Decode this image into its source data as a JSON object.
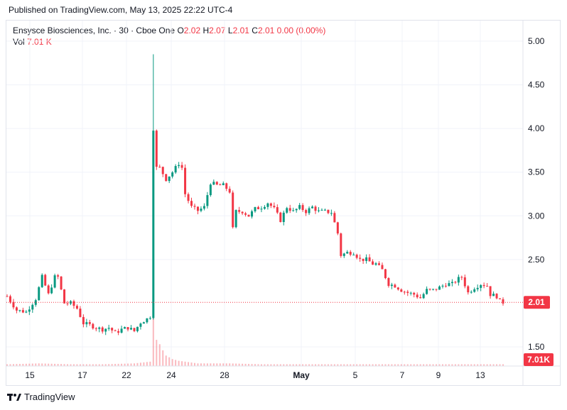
{
  "header": {
    "published": "Published on TradingView.com, May 13, 2025 22:22 UTC-4"
  },
  "legend": {
    "symbol": "Ensysce Biosciences, Inc. · 30 · Cboe One",
    "o_label": "O",
    "o": "2.02",
    "h_label": "H",
    "h": "2.07",
    "l_label": "L",
    "l": "2.01",
    "c_label": "C",
    "c": "2.01",
    "change": "0.00 (0.00%)",
    "vol_label": "Vol",
    "vol": "7.01 K"
  },
  "footer": {
    "brand": "TradingView"
  },
  "colors": {
    "up": "#089981",
    "down": "#f23645",
    "grid": "#f0f3fa",
    "text": "#131722"
  },
  "chart_data": {
    "type": "candlestick",
    "interval": "30",
    "y_ticks": [
      "5.00",
      "4.50",
      "4.00",
      "3.50",
      "3.00",
      "2.50",
      "1.50"
    ],
    "ylim": [
      1.3,
      5.2
    ],
    "x_ticks": [
      "15",
      "17",
      "22",
      "24",
      "28",
      "May",
      "5",
      "7",
      "9",
      "13"
    ],
    "last_price": "2.01",
    "last_volume": "7.01K",
    "price_path": [
      [
        0,
        2.08
      ],
      [
        3,
        1.92
      ],
      [
        6,
        1.9
      ],
      [
        9,
        2.05
      ],
      [
        11,
        2.3
      ],
      [
        13,
        2.1
      ],
      [
        15,
        2.3
      ],
      [
        16,
        2.3
      ],
      [
        18,
        2.0
      ],
      [
        20,
        2.0
      ],
      [
        22,
        1.94
      ],
      [
        24,
        1.77
      ],
      [
        26,
        1.75
      ],
      [
        28,
        1.72
      ],
      [
        30,
        1.7
      ],
      [
        32,
        1.72
      ],
      [
        34,
        1.66
      ],
      [
        36,
        1.7
      ],
      [
        38,
        1.72
      ],
      [
        40,
        1.68
      ],
      [
        42,
        1.78
      ],
      [
        44,
        1.82
      ],
      [
        45,
        1.85
      ],
      [
        46,
        4.0
      ],
      [
        47,
        3.55
      ],
      [
        48,
        3.55
      ],
      [
        50,
        3.42
      ],
      [
        52,
        3.5
      ],
      [
        54,
        3.6
      ],
      [
        55,
        3.55
      ],
      [
        56,
        3.25
      ],
      [
        58,
        3.1
      ],
      [
        60,
        3.06
      ],
      [
        62,
        3.1
      ],
      [
        64,
        3.38
      ],
      [
        66,
        3.35
      ],
      [
        68,
        3.35
      ],
      [
        70,
        3.28
      ],
      [
        71,
        2.85
      ],
      [
        72,
        3.05
      ],
      [
        74,
        3.05
      ],
      [
        76,
        3.0
      ],
      [
        78,
        3.08
      ],
      [
        80,
        3.1
      ],
      [
        82,
        3.15
      ],
      [
        84,
        3.08
      ],
      [
        86,
        2.95
      ],
      [
        88,
        3.1
      ],
      [
        90,
        3.05
      ],
      [
        92,
        3.1
      ],
      [
        94,
        3.05
      ],
      [
        96,
        3.1
      ],
      [
        98,
        3.05
      ],
      [
        100,
        3.05
      ],
      [
        102,
        3.04
      ],
      [
        104,
        2.8
      ],
      [
        105,
        2.55
      ],
      [
        107,
        2.58
      ],
      [
        109,
        2.58
      ],
      [
        111,
        2.5
      ],
      [
        113,
        2.5
      ],
      [
        115,
        2.45
      ],
      [
        116,
        2.45
      ],
      [
        118,
        2.38
      ],
      [
        120,
        2.22
      ],
      [
        122,
        2.2
      ],
      [
        124,
        2.15
      ],
      [
        126,
        2.12
      ],
      [
        128,
        2.1
      ],
      [
        130,
        2.06
      ],
      [
        132,
        2.15
      ],
      [
        134,
        2.15
      ],
      [
        136,
        2.18
      ],
      [
        138,
        2.22
      ],
      [
        140,
        2.22
      ],
      [
        142,
        2.28
      ],
      [
        143,
        2.3
      ],
      [
        145,
        2.12
      ],
      [
        147,
        2.18
      ],
      [
        149,
        2.22
      ],
      [
        151,
        2.2
      ],
      [
        152,
        2.1
      ],
      [
        154,
        2.08
      ],
      [
        155,
        2.02
      ],
      [
        156,
        2.01
      ]
    ],
    "volume_path": [
      [
        0,
        0.02
      ],
      [
        10,
        0.03
      ],
      [
        20,
        0.02
      ],
      [
        30,
        0.02
      ],
      [
        40,
        0.03
      ],
      [
        45,
        0.05
      ],
      [
        46,
        1.0
      ],
      [
        47,
        0.3
      ],
      [
        48,
        0.25
      ],
      [
        49,
        0.18
      ],
      [
        50,
        0.12
      ],
      [
        51,
        0.1
      ],
      [
        52,
        0.08
      ],
      [
        54,
        0.06
      ],
      [
        56,
        0.05
      ],
      [
        60,
        0.03
      ],
      [
        70,
        0.03
      ],
      [
        80,
        0.02
      ],
      [
        90,
        0.02
      ],
      [
        100,
        0.02
      ],
      [
        110,
        0.02
      ],
      [
        120,
        0.02
      ],
      [
        130,
        0.02
      ],
      [
        140,
        0.02
      ],
      [
        150,
        0.02
      ],
      [
        156,
        0.02
      ]
    ]
  }
}
